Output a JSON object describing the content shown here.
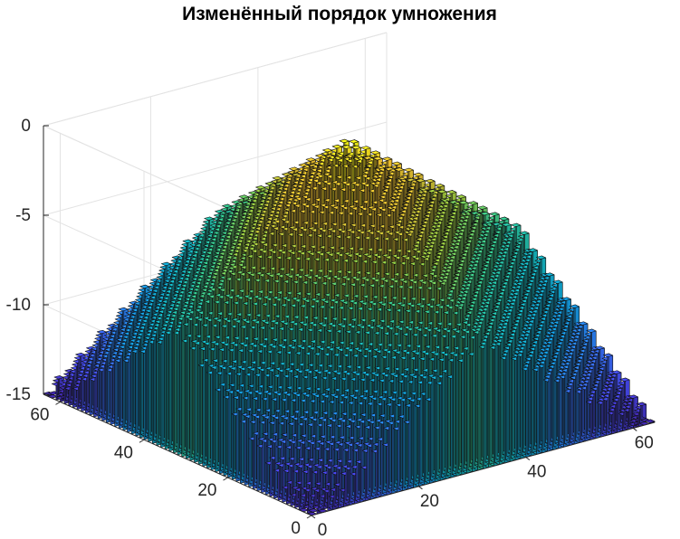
{
  "chart_data": {
    "type": "bar3",
    "title": "Изменённый порядок умножения",
    "grid": true,
    "colormap": "parula",
    "colormap_stops": [
      "#3e26a8",
      "#4746eb",
      "#2f79fa",
      "#0f9fd8",
      "#14b6be",
      "#32c38c",
      "#8dca43",
      "#d5bc31",
      "#feca2f",
      "#f9fb14"
    ],
    "x_range": [
      0,
      64
    ],
    "y_range": [
      0,
      64
    ],
    "z_range": [
      -15,
      0
    ],
    "x_ticks": [
      "0",
      "20",
      "40",
      "60"
    ],
    "y_ticks": [
      "0",
      "20",
      "40",
      "60"
    ],
    "z_ticks": [
      "0",
      "-5",
      "-10",
      "-15"
    ],
    "x_tick_values": [
      0,
      20,
      40,
      60
    ],
    "y_tick_values": [
      0,
      20,
      40,
      60
    ],
    "z_tick_values": [
      0,
      -5,
      -10,
      -15
    ],
    "grid_size": [
      64,
      64
    ],
    "surface": "z(i,j) ≈ -(|i-32.5| + |j-32.5|)/4.3 + stairs; peak ≈ -0.3 at center (32,32), minimum ≈ -15 at corners"
  }
}
